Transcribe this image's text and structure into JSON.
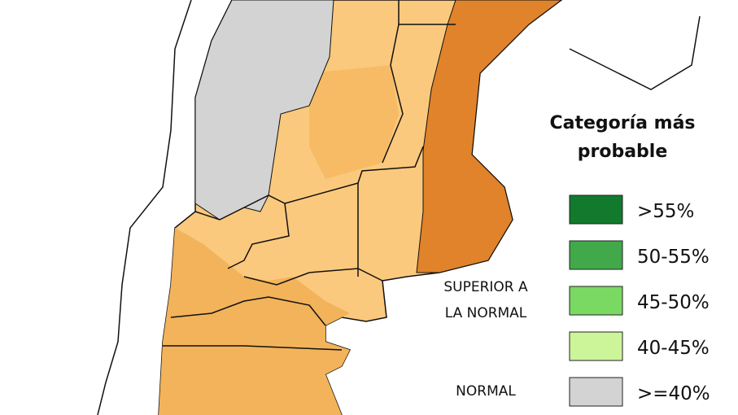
{
  "legend": {
    "title": [
      "Categoría más",
      "probable"
    ],
    "items": [
      {
        "label": ">55%",
        "color": "#127a2c"
      },
      {
        "label": "50-55%",
        "color": "#41a94a"
      },
      {
        "label": "45-50%",
        "color": "#7ad963"
      },
      {
        "label": "40-45%",
        "color": "#ccf59a"
      },
      {
        "label": ">=40%",
        "color": "#d3d3d3"
      }
    ],
    "group_labels": [
      [
        "SUPERIOR A",
        "LA NORMAL"
      ],
      [
        "NORMAL"
      ]
    ]
  }
}
